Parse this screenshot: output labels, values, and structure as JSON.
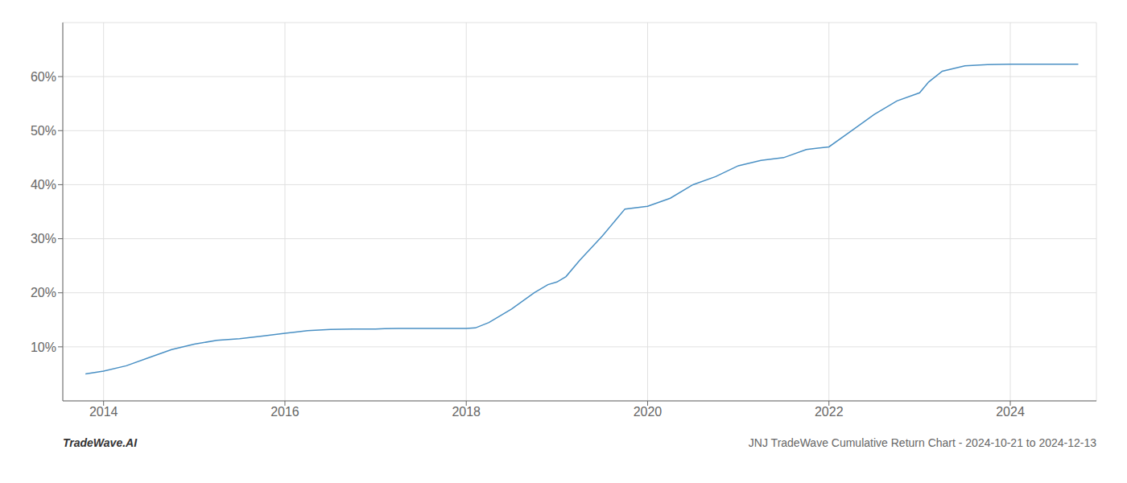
{
  "chart_data": {
    "type": "line",
    "title": "JNJ TradeWave Cumulative Return Chart - 2024-10-21 to 2024-12-13",
    "annotations": [
      "TradeWave.AI"
    ],
    "x": [
      2013.8,
      2014.0,
      2014.25,
      2014.5,
      2014.75,
      2015.0,
      2015.25,
      2015.5,
      2015.75,
      2016.0,
      2016.1,
      2016.25,
      2016.5,
      2016.75,
      2017.0,
      2017.1,
      2017.25,
      2017.5,
      2017.75,
      2017.9,
      2018.0,
      2018.1,
      2018.25,
      2018.5,
      2018.75,
      2018.9,
      2019.0,
      2019.1,
      2019.25,
      2019.5,
      2019.75,
      2020.0,
      2020.25,
      2020.5,
      2020.75,
      2021.0,
      2021.25,
      2021.5,
      2021.75,
      2022.0,
      2022.25,
      2022.5,
      2022.75,
      2023.0,
      2023.1,
      2023.25,
      2023.5,
      2023.75,
      2024.0,
      2024.25,
      2024.5,
      2024.75
    ],
    "values": [
      5.0,
      5.5,
      6.5,
      8.0,
      9.5,
      10.5,
      11.2,
      11.5,
      12.0,
      12.5,
      12.7,
      13.0,
      13.2,
      13.3,
      13.3,
      13.35,
      13.4,
      13.4,
      13.4,
      13.4,
      13.4,
      13.5,
      14.5,
      17.0,
      20.0,
      21.5,
      22.0,
      23.0,
      26.0,
      30.5,
      35.5,
      36.0,
      37.5,
      40.0,
      41.5,
      43.5,
      44.5,
      45.0,
      46.5,
      47.0,
      50.0,
      53.0,
      55.5,
      57.0,
      59.0,
      61.0,
      62.0,
      62.2,
      62.3,
      62.3,
      62.3,
      62.3
    ],
    "color": "#4a90c4",
    "xlim": [
      2013.55,
      2024.95
    ],
    "ylim": [
      0,
      70
    ],
    "xticks": [
      2014,
      2016,
      2018,
      2020,
      2022,
      2024
    ],
    "yticks": [
      {
        "value": 10,
        "label": "10%"
      },
      {
        "value": 20,
        "label": "20%"
      },
      {
        "value": 30,
        "label": "30%"
      },
      {
        "value": 40,
        "label": "40%"
      },
      {
        "value": 50,
        "label": "50%"
      },
      {
        "value": 60,
        "label": "60%"
      }
    ],
    "grid": true
  }
}
